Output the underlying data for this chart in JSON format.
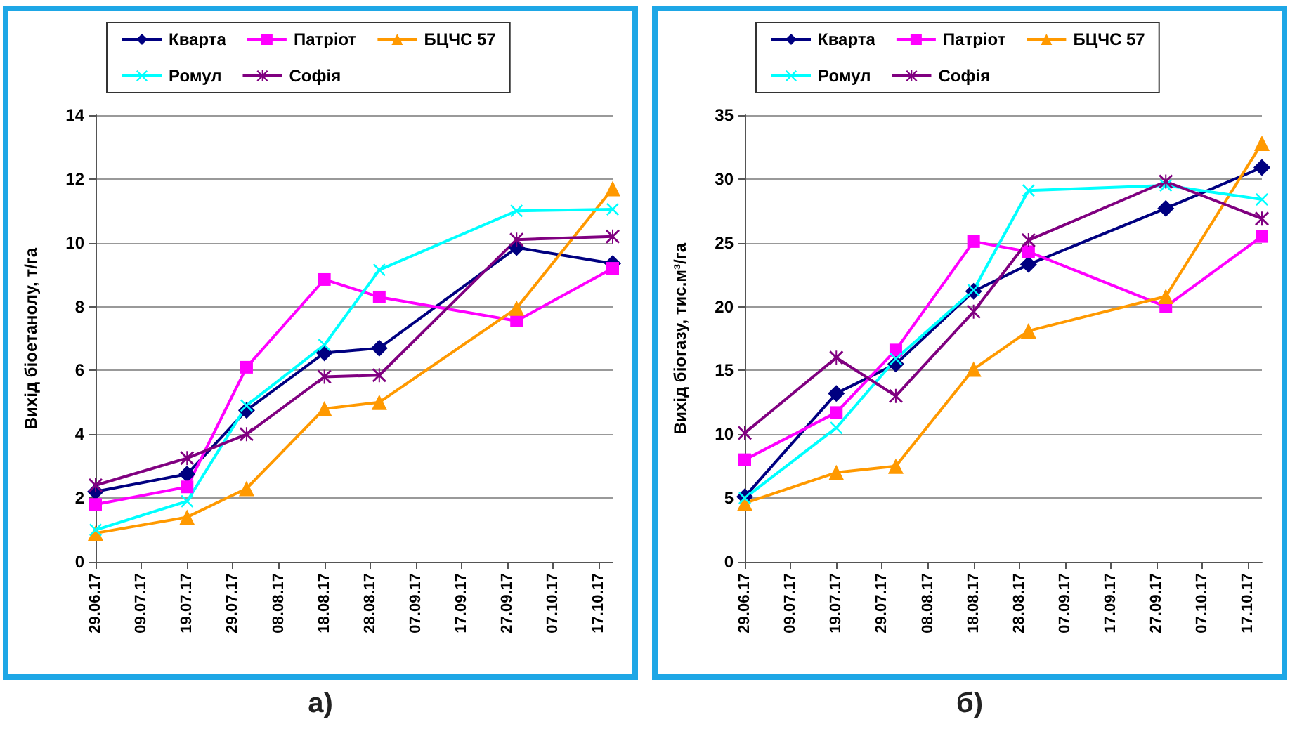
{
  "chart_data": [
    {
      "type": "line",
      "ylabel": "Вихід біоетанолу, т/га",
      "annotations": [
        "а)"
      ],
      "x": [
        "--06-29",
        "--07-19",
        "--08-01",
        "--08-18",
        "--08-30",
        "--09-29",
        "--10-20"
      ],
      "series": [
        {
          "name": "Кварта",
          "color": "#000080",
          "marker": "diamond",
          "values": [
            2.2,
            2.75,
            4.75,
            6.55,
            6.7,
            9.85,
            9.35
          ]
        },
        {
          "name": "Патріот",
          "color": "#ff00ff",
          "marker": "square",
          "values": [
            1.8,
            2.35,
            6.1,
            8.85,
            8.3,
            7.55,
            9.2
          ]
        },
        {
          "name": "БЦЧС 57",
          "color": "#ff9900",
          "marker": "triangle",
          "values": [
            0.9,
            1.4,
            2.3,
            4.8,
            5.0,
            7.95,
            11.7
          ]
        },
        {
          "name": "Ромул",
          "color": "#00ffff",
          "marker": "cross",
          "values": [
            1.0,
            1.9,
            4.9,
            6.8,
            9.15,
            11.0,
            11.05
          ]
        },
        {
          "name": "Софія",
          "color": "#800080",
          "marker": "star",
          "values": [
            2.4,
            3.25,
            4.0,
            5.8,
            5.85,
            10.1,
            10.2
          ]
        }
      ],
      "xlim": [
        "--06-29",
        "--10-20"
      ],
      "xticks": [
        {
          "value": "--06-29",
          "label": "29.06.17"
        },
        {
          "value": "--07-09",
          "label": "09.07.17"
        },
        {
          "value": "--07-19",
          "label": "19.07.17"
        },
        {
          "value": "--07-29",
          "label": "29.07.17"
        },
        {
          "value": "--08-08",
          "label": "08.08.17"
        },
        {
          "value": "--08-18",
          "label": "18.08.17"
        },
        {
          "value": "--08-28",
          "label": "28.08.17"
        },
        {
          "value": "--09-07",
          "label": "07.09.17"
        },
        {
          "value": "--09-17",
          "label": "17.09.17"
        },
        {
          "value": "--09-27",
          "label": "27.09.17"
        },
        {
          "value": "--10-07",
          "label": "07.10.17"
        },
        {
          "value": "--10-17",
          "label": "17.10.17"
        }
      ],
      "ylim": [
        0,
        14
      ],
      "yticks": [
        0,
        2,
        4,
        6,
        8,
        10,
        12,
        14
      ],
      "grid": "y",
      "legend": "top"
    },
    {
      "type": "line",
      "ylabel": "Вихід біогазу, тис.м³/га",
      "annotations": [
        "б)"
      ],
      "x": [
        "--06-29",
        "--07-19",
        "--08-01",
        "--08-18",
        "--08-30",
        "--09-29",
        "--10-20"
      ],
      "series": [
        {
          "name": "Кварта",
          "color": "#000080",
          "marker": "diamond",
          "values": [
            5.1,
            13.2,
            15.5,
            21.2,
            23.3,
            27.7,
            30.9
          ]
        },
        {
          "name": "Патріот",
          "color": "#ff00ff",
          "marker": "square",
          "values": [
            8.0,
            11.7,
            16.6,
            25.1,
            24.3,
            20.0,
            25.5
          ]
        },
        {
          "name": "БЦЧС 57",
          "color": "#ff9900",
          "marker": "triangle",
          "values": [
            4.6,
            7.0,
            7.5,
            15.1,
            18.1,
            20.8,
            32.8
          ]
        },
        {
          "name": "Ромул",
          "color": "#00ffff",
          "marker": "cross",
          "values": [
            5.0,
            10.5,
            15.9,
            21.3,
            29.1,
            29.5,
            28.4
          ]
        },
        {
          "name": "Софія",
          "color": "#800080",
          "marker": "star",
          "values": [
            10.1,
            16.0,
            13.0,
            19.6,
            25.2,
            29.8,
            26.9
          ]
        }
      ],
      "xlim": [
        "--06-29",
        "--10-20"
      ],
      "xticks": [
        {
          "value": "--06-29",
          "label": "29.06.17"
        },
        {
          "value": "--07-09",
          "label": "09.07.17"
        },
        {
          "value": "--07-19",
          "label": "19.07.17"
        },
        {
          "value": "--07-29",
          "label": "29.07.17"
        },
        {
          "value": "--08-08",
          "label": "08.08.17"
        },
        {
          "value": "--08-18",
          "label": "18.08.17"
        },
        {
          "value": "--08-28",
          "label": "28.08.17"
        },
        {
          "value": "--09-07",
          "label": "07.09.17"
        },
        {
          "value": "--09-17",
          "label": "17.09.17"
        },
        {
          "value": "--09-27",
          "label": "27.09.17"
        },
        {
          "value": "--10-07",
          "label": "07.10.17"
        },
        {
          "value": "--10-17",
          "label": "17.10.17"
        }
      ],
      "ylim": [
        0,
        35
      ],
      "yticks": [
        0,
        5,
        10,
        15,
        20,
        25,
        30,
        35
      ],
      "grid": "y",
      "legend": "top"
    }
  ]
}
